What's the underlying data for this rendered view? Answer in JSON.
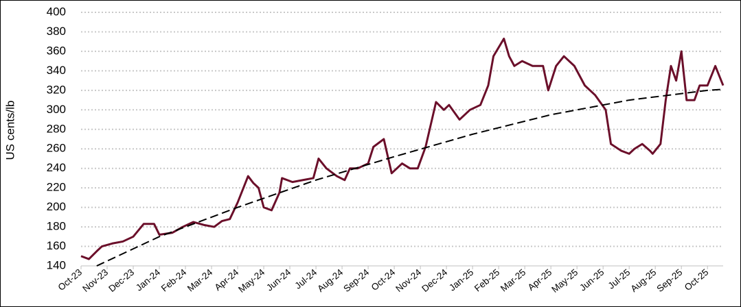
{
  "chart_data": {
    "type": "line",
    "y_label": "US cents/lb",
    "xlim": [
      0,
      24.6
    ],
    "xticks": [
      {
        "value": 0,
        "label": "Oct-23"
      },
      {
        "value": 1,
        "label": "Nov-23"
      },
      {
        "value": 2,
        "label": "Dec-23"
      },
      {
        "value": 3,
        "label": "Jan-24"
      },
      {
        "value": 4,
        "label": "Feb-24"
      },
      {
        "value": 5,
        "label": "Mar-24"
      },
      {
        "value": 6,
        "label": "Apr-24"
      },
      {
        "value": 7,
        "label": "May-24"
      },
      {
        "value": 8,
        "label": "Jun-24"
      },
      {
        "value": 9,
        "label": "Jul-24"
      },
      {
        "value": 10,
        "label": "Aug-24"
      },
      {
        "value": 11,
        "label": "Sep-24"
      },
      {
        "value": 12,
        "label": "Oct-24"
      },
      {
        "value": 13,
        "label": "Nov-24"
      },
      {
        "value": 14,
        "label": "Dec-24"
      },
      {
        "value": 15,
        "label": "Jan-25"
      },
      {
        "value": 16,
        "label": "Feb-25"
      },
      {
        "value": 17,
        "label": "Mar-25"
      },
      {
        "value": 18,
        "label": "Apr-25"
      },
      {
        "value": 19,
        "label": "May-25"
      },
      {
        "value": 20,
        "label": "Jun-25"
      },
      {
        "value": 21,
        "label": "Jul-25"
      },
      {
        "value": 22,
        "label": "Aug-25"
      },
      {
        "value": 23,
        "label": "Sep-25"
      },
      {
        "value": 24,
        "label": "Oct-25"
      }
    ],
    "ylim": [
      140,
      400
    ],
    "yticks": [
      140,
      160,
      180,
      200,
      220,
      240,
      260,
      280,
      300,
      320,
      340,
      360,
      380,
      400
    ],
    "grid": true,
    "series": [
      {
        "color": "#6b0f2a",
        "style": "solid",
        "x": [
          0,
          0.3,
          0.6,
          0.8,
          1.2,
          1.6,
          2.0,
          2.4,
          2.8,
          3.0,
          3.5,
          3.9,
          4.3,
          4.7,
          5.1,
          5.4,
          5.7,
          6.0,
          6.4,
          6.6,
          6.8,
          7.0,
          7.3,
          7.6,
          7.7,
          8.1,
          8.5,
          8.9,
          9.1,
          9.4,
          9.8,
          10.1,
          10.3,
          10.6,
          11.0,
          11.2,
          11.6,
          11.9,
          12.3,
          12.6,
          12.9,
          13.2,
          13.6,
          13.9,
          14.1,
          14.5,
          14.9,
          15.3,
          15.6,
          15.8,
          16.2,
          16.4,
          16.6,
          16.9,
          17.3,
          17.7,
          17.9,
          18.2,
          18.5,
          18.9,
          19.3,
          19.7,
          20.1,
          20.3,
          20.7,
          21.0,
          21.2,
          21.5,
          21.8,
          21.9,
          22.2,
          22.4,
          22.6,
          22.8,
          23.0,
          23.2,
          23.5,
          23.7,
          24.0,
          24.3,
          24.6
        ],
        "values": [
          150,
          147,
          155,
          160,
          163,
          165,
          170,
          183,
          183,
          172,
          174,
          180,
          185,
          182,
          180,
          186,
          188,
          205,
          232,
          225,
          220,
          200,
          197,
          215,
          230,
          226,
          228,
          230,
          250,
          240,
          232,
          228,
          240,
          240,
          245,
          262,
          270,
          235,
          245,
          240,
          240,
          262,
          308,
          300,
          305,
          290,
          300,
          305,
          325,
          355,
          373,
          355,
          345,
          350,
          345,
          345,
          320,
          345,
          355,
          345,
          325,
          315,
          300,
          265,
          258,
          255,
          260,
          265,
          258,
          255,
          265,
          310,
          345,
          330,
          360,
          310,
          310,
          325,
          325,
          345,
          325
        ]
      },
      {
        "color": "#000000",
        "style": "dashed",
        "x": [
          0.6,
          3,
          6,
          9,
          12,
          15,
          18,
          21,
          24,
          24.6
        ],
        "values": [
          140,
          170,
          200,
          228,
          252,
          275,
          295,
          310,
          320,
          321
        ]
      }
    ]
  }
}
